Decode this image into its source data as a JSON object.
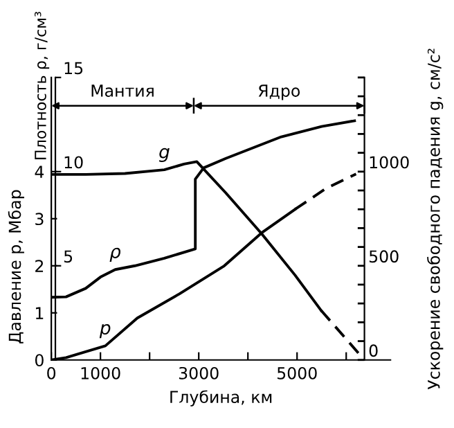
{
  "chart_data": {
    "type": "line",
    "xlabel": "Глубина, км",
    "ylabel": "Давление p, Мбар",
    "y2label": "Ускорение свободного падения g, см/с²",
    "y3label": "Плотность ρ, г/см³",
    "xlim": [
      0,
      6900
    ],
    "xticks": [
      0,
      1000,
      {
        "value": 2000,
        "label": null
      },
      3000,
      {
        "value": 4000,
        "label": null
      },
      5000,
      {
        "value": 6000,
        "label": null
      }
    ],
    "ylim": [
      0,
      6
    ],
    "yticks": [
      0,
      1,
      2,
      3,
      4
    ],
    "y3lim": [
      0,
      15
    ],
    "y3ticks": [
      5,
      10,
      15
    ],
    "y2lim": [
      0,
      1500
    ],
    "y2ticks": [
      0,
      500,
      1000
    ],
    "grid": false,
    "marker": "none",
    "series": [
      {
        "name": "g",
        "color": "#000000",
        "axis": "y2",
        "line_style": "solid",
        "x": [
          0,
          700,
          1500,
          2300,
          2700,
          2960,
          3550,
          4280,
          4960,
          5490
        ],
        "values": [
          985,
          985,
          990,
          1010,
          1040,
          1053,
          887,
          670,
          450,
          263
        ]
      },
      {
        "color": "#000000",
        "axis": "y2",
        "line_style": "dashed",
        "x": [
          5490,
          6371
        ],
        "values": [
          263,
          0
        ]
      },
      {
        "name": "ρ",
        "color": "#000000",
        "axis": "y3",
        "line_style": "solid",
        "x": [
          0,
          300,
          700,
          1000,
          1300,
          1700,
          2300,
          2930,
          2930,
          3100,
          3550,
          4680,
          5500,
          6170
        ],
        "values": [
          3.33,
          3.35,
          3.8,
          4.4,
          4.8,
          5.0,
          5.4,
          5.9,
          9.6,
          10.2,
          10.7,
          11.85,
          12.4,
          12.7
        ]
      },
      {
        "name": "p",
        "color": "#000000",
        "axis": "y",
        "line_style": "solid",
        "x": [
          0,
          300,
          1100,
          1750,
          2600,
          3520,
          4280,
          4960
        ],
        "values": [
          0,
          0.05,
          0.3,
          0.89,
          1.4,
          2.0,
          2.7,
          3.2
        ]
      },
      {
        "color": "#000000",
        "axis": "y",
        "line_style": "dashed",
        "x": [
          4960,
          5600,
          6200
        ],
        "values": [
          3.2,
          3.65,
          3.95
        ]
      }
    ],
    "annotations": [
      "Мантия",
      "Ядро"
    ]
  }
}
